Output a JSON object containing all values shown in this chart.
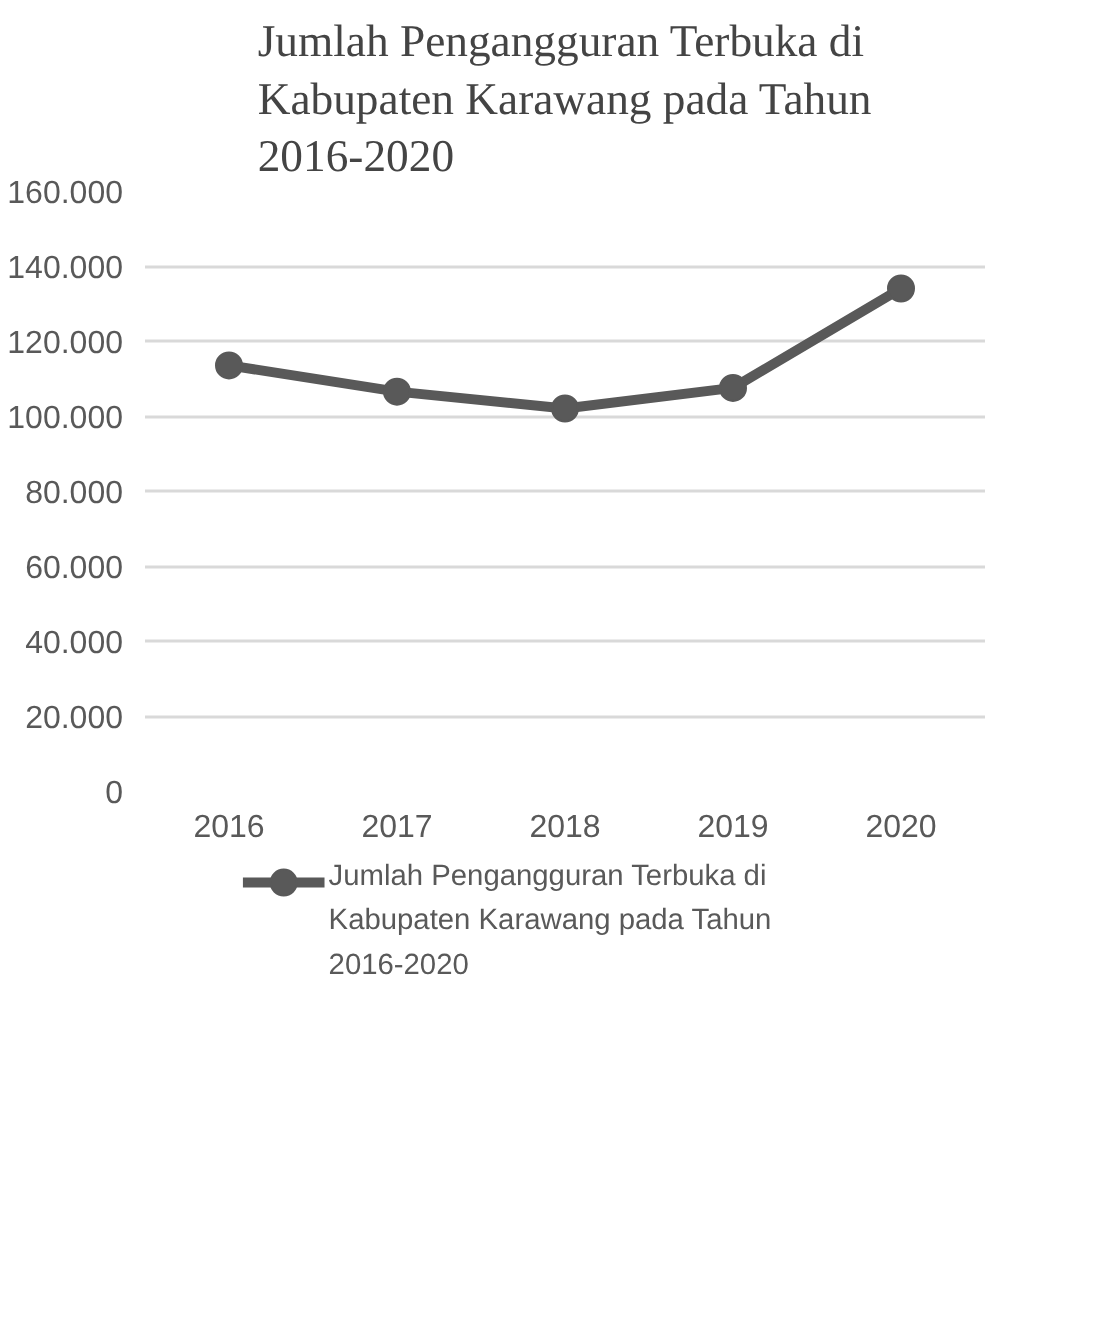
{
  "chart_data": {
    "type": "line",
    "title": "Jumlah Pengangguran Terbuka di Kabupaten Karawang pada Tahun 2016-2020",
    "categories": [
      "2016",
      "2017",
      "2018",
      "2019",
      "2020"
    ],
    "series": [
      {
        "name": "Jumlah Pengangguran Terbuka di Kabupaten Karawang pada Tahun 2016-2020",
        "color": "#595959",
        "values": [
          113500,
          106500,
          102000,
          107500,
          134000
        ]
      }
    ],
    "ylim": [
      0,
      160000
    ],
    "yticks": [
      {
        "value": 0,
        "label": "0"
      },
      {
        "value": 20000,
        "label": "20.000"
      },
      {
        "value": 40000,
        "label": "40.000"
      },
      {
        "value": 60000,
        "label": "60.000"
      },
      {
        "value": 80000,
        "label": "80.000"
      },
      {
        "value": 100000,
        "label": "100.000"
      },
      {
        "value": 120000,
        "label": "120.000"
      },
      {
        "value": 140000,
        "label": "140.000"
      },
      {
        "value": 160000,
        "label": "160.000"
      }
    ],
    "grid": "y",
    "legend": "bottom",
    "marker": "circle",
    "line_style": "solid"
  }
}
